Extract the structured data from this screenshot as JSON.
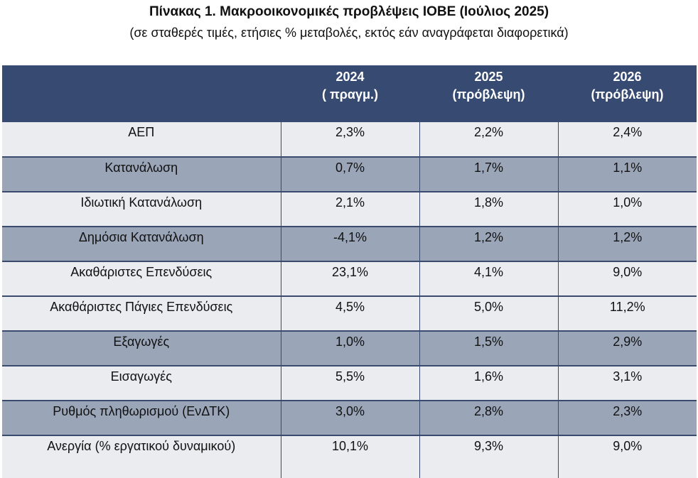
{
  "title": "Πίνακας 1. Μακροοικονομικές προβλέψεις ΙΟΒΕ (Ιούλιος 2025)",
  "subtitle": "(σε σταθερές τιμές, ετήσιες % μεταβολές, εκτός εάν αναγράφεται διαφορετικά)",
  "columns": [
    {
      "year": "2024",
      "note": "( πραγμ.)"
    },
    {
      "year": "2025",
      "note": "(πρόβλεψη)"
    },
    {
      "year": "2026",
      "note": "(πρόβλεψη)"
    }
  ],
  "rows": [
    {
      "label": "ΑΕΠ",
      "values": [
        "2,3%",
        "2,2%",
        "2,4%"
      ],
      "shade": "light"
    },
    {
      "label": "Κατανάλωση",
      "values": [
        "0,7%",
        "1,7%",
        "1,1%"
      ],
      "shade": "dark"
    },
    {
      "label": "Ιδιωτική Κατανάλωση",
      "values": [
        "2,1%",
        "1,8%",
        "1,0%"
      ],
      "shade": "light"
    },
    {
      "label": "Δημόσια Κατανάλωση",
      "values": [
        "-4,1%",
        "1,2%",
        "1,2%"
      ],
      "shade": "dark"
    },
    {
      "label": "Ακαθάριστες Επενδύσεις",
      "values": [
        "23,1%",
        "4,1%",
        "9,0%"
      ],
      "shade": "light"
    },
    {
      "label": "Ακαθάριστες Πάγιες Επενδύσεις",
      "values": [
        "4,5%",
        "5,0%",
        "11,2%"
      ],
      "shade": "light"
    },
    {
      "label": "Εξαγωγές",
      "values": [
        "1,0%",
        "1,5%",
        "2,9%"
      ],
      "shade": "dark"
    },
    {
      "label": "Εισαγωγές",
      "values": [
        "5,5%",
        "1,6%",
        "3,1%"
      ],
      "shade": "light"
    },
    {
      "label": "Ρυθμός πληθωρισμού (ΕνΔΤΚ)",
      "values": [
        "3,0%",
        "2,8%",
        "2,3%"
      ],
      "shade": "dark"
    },
    {
      "label": "Ανεργία (% εργατικού δυναμικού)",
      "values": [
        "10,1%",
        "9,3%",
        "9,0%"
      ],
      "shade": "light"
    }
  ],
  "colors": {
    "header": "#374a72",
    "row_light": "#ebecf0",
    "row_dark": "#9aa5b8"
  }
}
